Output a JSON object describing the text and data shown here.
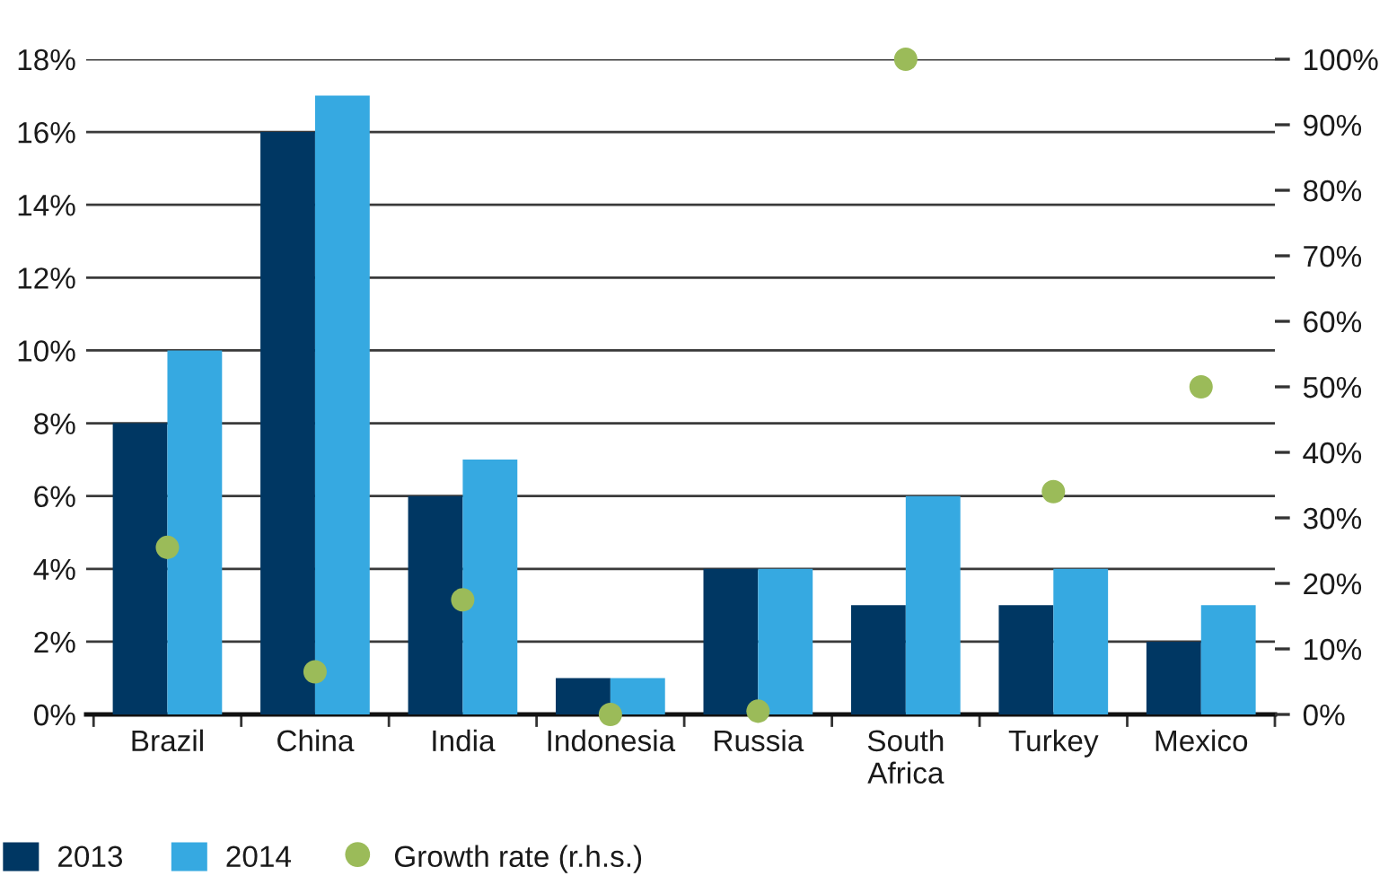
{
  "chart_data": {
    "type": "bar",
    "categories": [
      "Brazil",
      "China",
      "India",
      "Indonesia",
      "Russia",
      "South Africa",
      "Turkey",
      "Mexico"
    ],
    "series": [
      {
        "name": "2013",
        "color": "#003763",
        "values": [
          8,
          16,
          6,
          1,
          4,
          3,
          3,
          2
        ]
      },
      {
        "name": "2014",
        "color": "#36a9e1",
        "values": [
          10,
          17,
          7,
          1,
          4,
          6,
          4,
          3
        ]
      },
      {
        "name": "Growth rate (r.h.s.)",
        "type": "scatter",
        "axis": "y2",
        "marker": "circle",
        "color": "#9bbb59",
        "values": [
          25.5,
          6.5,
          17.5,
          0,
          0.5,
          100,
          34,
          50
        ]
      }
    ],
    "ylim": [
      0,
      18
    ],
    "yticks": [
      {
        "value": 0,
        "label": "0%"
      },
      {
        "value": 2,
        "label": "2%"
      },
      {
        "value": 4,
        "label": "4%"
      },
      {
        "value": 6,
        "label": "6%"
      },
      {
        "value": 8,
        "label": "8%"
      },
      {
        "value": 10,
        "label": "10%"
      },
      {
        "value": 12,
        "label": "12%"
      },
      {
        "value": 14,
        "label": "14%"
      },
      {
        "value": 16,
        "label": "16%"
      },
      {
        "value": 18,
        "label": "18%"
      }
    ],
    "y2lim": [
      0,
      100
    ],
    "y2ticks": [
      {
        "value": 0,
        "label": "0%"
      },
      {
        "value": 10,
        "label": "10%"
      },
      {
        "value": 20,
        "label": "20%"
      },
      {
        "value": 30,
        "label": "30%"
      },
      {
        "value": 40,
        "label": "40%"
      },
      {
        "value": 50,
        "label": "50%"
      },
      {
        "value": 60,
        "label": "60%"
      },
      {
        "value": 70,
        "label": "70%"
      },
      {
        "value": 80,
        "label": "80%"
      },
      {
        "value": 90,
        "label": "90%"
      },
      {
        "value": 100,
        "label": "100%"
      }
    ],
    "grid": "y",
    "legend": "bottom"
  }
}
